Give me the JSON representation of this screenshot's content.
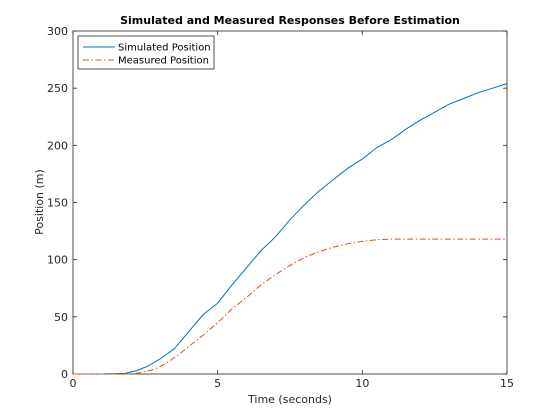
{
  "chart_data": {
    "type": "line",
    "title": "Simulated and Measured Responses Before Estimation",
    "xlabel": "Time (seconds)",
    "ylabel": "Position (m)",
    "xlim": [
      0,
      15
    ],
    "ylim": [
      0,
      300
    ],
    "x_ticks": [
      0,
      5,
      10,
      15
    ],
    "y_ticks": [
      0,
      50,
      100,
      150,
      200,
      250,
      300
    ],
    "grid": false,
    "legend_position": "top-left",
    "series": [
      {
        "name": "Simulated Position",
        "color": "#0072bd",
        "style": "solid",
        "x": [
          0,
          1,
          1.8,
          2.2,
          2.6,
          3.0,
          3.5,
          4.0,
          4.5,
          5.0,
          5.5,
          6.0,
          6.5,
          7.0,
          7.5,
          8.0,
          8.5,
          9.0,
          9.5,
          10.0,
          10.5,
          11.0,
          11.5,
          12.0,
          12.5,
          13.0,
          13.5,
          14.0,
          14.5,
          15.0
        ],
        "y": [
          0,
          0,
          0.5,
          3,
          7,
          13,
          22,
          37,
          52,
          62,
          78,
          93,
          108,
          120,
          135,
          148,
          160,
          170,
          180,
          188,
          198,
          205,
          214,
          222,
          229,
          236,
          241,
          246,
          250,
          254
        ]
      },
      {
        "name": "Measured Position",
        "color": "#d95319",
        "style": "dashdot",
        "x": [
          0,
          1,
          2.0,
          2.4,
          2.8,
          3.2,
          3.6,
          4.0,
          4.5,
          5.0,
          5.5,
          6.0,
          6.5,
          7.0,
          7.5,
          8.0,
          8.5,
          9.0,
          9.5,
          10.0,
          10.5,
          11.0,
          11.5,
          12.0,
          12.5,
          13.0,
          13.5,
          14.0,
          14.5,
          15.0
        ],
        "y": [
          0,
          0,
          0,
          1.5,
          4,
          9,
          16,
          24,
          34,
          45,
          57,
          67,
          78,
          87,
          95,
          102,
          107,
          111,
          114,
          116,
          117.5,
          118,
          118,
          118,
          118,
          118,
          118,
          118,
          118,
          118
        ]
      }
    ]
  }
}
